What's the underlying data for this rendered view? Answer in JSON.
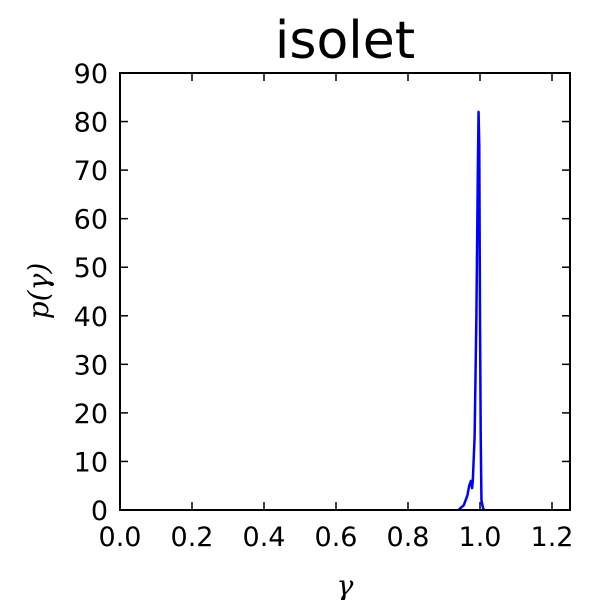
{
  "chart_data": {
    "type": "line",
    "title": "isolet",
    "xlabel": "γ",
    "ylabel": "p(γ)",
    "xlim": [
      0.0,
      1.25
    ],
    "ylim": [
      0,
      90
    ],
    "x_ticks": [
      "0.0",
      "0.2",
      "0.4",
      "0.6",
      "0.8",
      "1.0",
      "1.2"
    ],
    "y_ticks": [
      "0",
      "10",
      "20",
      "30",
      "40",
      "50",
      "60",
      "70",
      "80",
      "90"
    ],
    "grid": false,
    "legend": "none",
    "series": [
      {
        "color": "#0000ff",
        "x": [
          0.94,
          0.955,
          0.965,
          0.97,
          0.975,
          0.978,
          0.98,
          0.985,
          0.99,
          0.994,
          0.996,
          0.998,
          1.0,
          1.002,
          1.004,
          1.008,
          1.011
        ],
        "y": [
          0,
          1,
          3,
          5,
          6,
          4.5,
          6,
          15,
          40,
          70,
          82,
          75,
          40,
          15,
          2,
          0.5,
          0
        ]
      }
    ]
  }
}
